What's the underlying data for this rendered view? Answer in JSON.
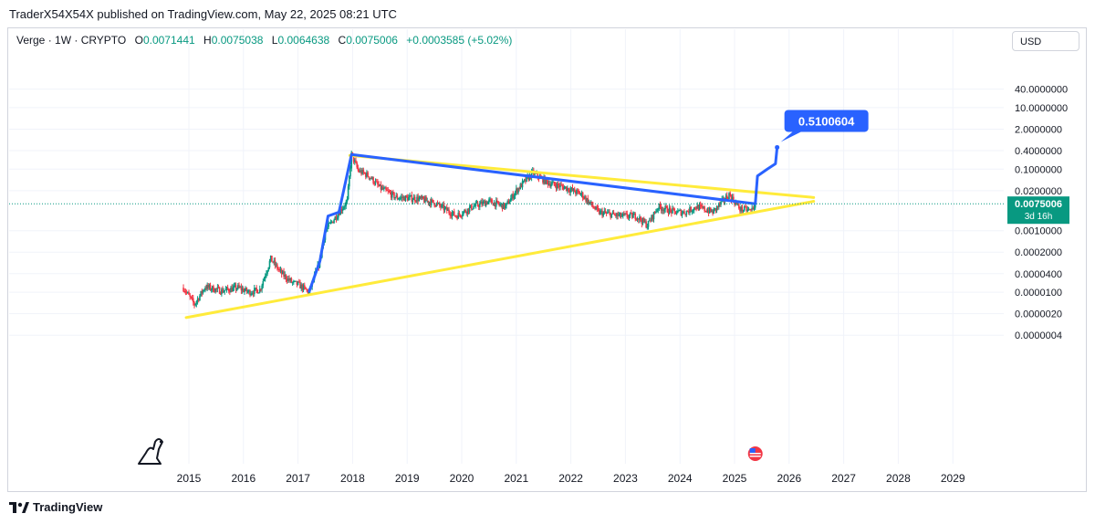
{
  "header": {
    "publisher": "TraderX54X54X published on TradingView.com, May 22, 2025 08:21 UTC"
  },
  "legend": {
    "symbol": "Verge · 1W · CRYPTO",
    "open_key": "O",
    "open": "0.0071441",
    "high_key": "H",
    "high": "0.0075038",
    "low_key": "L",
    "low": "0.0064638",
    "close_key": "C",
    "close": "0.0075006",
    "change": "+0.0003585 (+5.02%)"
  },
  "currency_button": "USD",
  "current_price": {
    "value": "0.0075006",
    "countdown": "3d 16h"
  },
  "target_label": "0.5100604",
  "footer": {
    "brand": "TradingView"
  },
  "colors": {
    "up": "#089981",
    "down": "#f23645",
    "projection": "#2962ff",
    "triangle": "#ffeb3b",
    "price_line": "#089981"
  },
  "chart_data": {
    "type": "candlestick",
    "title": "",
    "xlabel": "",
    "ylabel": "",
    "y_scale": "log",
    "x_ticks": [
      "2015",
      "2016",
      "2017",
      "2018",
      "2019",
      "2020",
      "2021",
      "2022",
      "2023",
      "2024",
      "2025",
      "2026",
      "2027",
      "2028",
      "2029"
    ],
    "y_ticks": [
      "40.0000000",
      "10.0000000",
      "2.0000000",
      "0.4000000",
      "0.1000000",
      "0.0200000",
      "0.0075006",
      "0.0010000",
      "0.0002000",
      "0.0000400",
      "0.0000100",
      "0.0000020",
      "0.0000004"
    ],
    "y_tick_values": [
      40,
      10,
      2,
      0.4,
      0.1,
      0.02,
      0.0075006,
      0.001,
      0.0002,
      4e-05,
      1e-05,
      2e-06,
      4e-07
    ],
    "price_path": [
      [
        2014.9,
        1.4e-05
      ],
      [
        2015.1,
        4e-06
      ],
      [
        2015.3,
        1.5e-05
      ],
      [
        2015.6,
        1.1e-05
      ],
      [
        2015.9,
        1.4e-05
      ],
      [
        2016.1,
        1e-05
      ],
      [
        2016.3,
        1.2e-05
      ],
      [
        2016.5,
        0.00012
      ],
      [
        2016.7,
        4e-05
      ],
      [
        2016.9,
        2e-05
      ],
      [
        2017.0,
        1.8e-05
      ],
      [
        2017.2,
        1e-05
      ],
      [
        2017.4,
        0.0001
      ],
      [
        2017.5,
        0.001
      ],
      [
        2017.7,
        0.003
      ],
      [
        2017.9,
        0.009
      ],
      [
        2017.98,
        0.3
      ],
      [
        2018.1,
        0.09
      ],
      [
        2018.3,
        0.06
      ],
      [
        2018.5,
        0.025
      ],
      [
        2018.8,
        0.012
      ],
      [
        2019.2,
        0.011
      ],
      [
        2019.5,
        0.008
      ],
      [
        2019.9,
        0.003
      ],
      [
        2020.2,
        0.006
      ],
      [
        2020.5,
        0.009
      ],
      [
        2020.8,
        0.006
      ],
      [
        2021.0,
        0.02
      ],
      [
        2021.3,
        0.075
      ],
      [
        2021.6,
        0.035
      ],
      [
        2021.9,
        0.025
      ],
      [
        2022.2,
        0.015
      ],
      [
        2022.5,
        0.004
      ],
      [
        2022.9,
        0.003
      ],
      [
        2023.2,
        0.003
      ],
      [
        2023.4,
        0.0015
      ],
      [
        2023.6,
        0.006
      ],
      [
        2023.9,
        0.004
      ],
      [
        2024.1,
        0.004
      ],
      [
        2024.3,
        0.006
      ],
      [
        2024.6,
        0.004
      ],
      [
        2024.9,
        0.015
      ],
      [
        2025.1,
        0.005
      ],
      [
        2025.3,
        0.0045
      ],
      [
        2025.38,
        0.0075006
      ]
    ],
    "bull_projection": [
      [
        2017.2,
        1e-05
      ],
      [
        2017.4,
        0.0001
      ],
      [
        2017.55,
        0.003
      ],
      [
        2017.75,
        0.004
      ],
      [
        2017.98,
        0.3
      ],
      [
        2025.38,
        0.0075006
      ],
      [
        2025.42,
        0.06
      ],
      [
        2025.6,
        0.1
      ],
      [
        2025.75,
        0.15
      ],
      [
        2025.78,
        0.5100604
      ]
    ],
    "triangle": {
      "upper": [
        [
          2017.95,
          0.28
        ],
        [
          2026.45,
          0.012
        ]
      ],
      "lower": [
        [
          2014.95,
          1.5e-06
        ],
        [
          2026.45,
          0.009
        ]
      ]
    },
    "last_close": 0.0075006
  }
}
